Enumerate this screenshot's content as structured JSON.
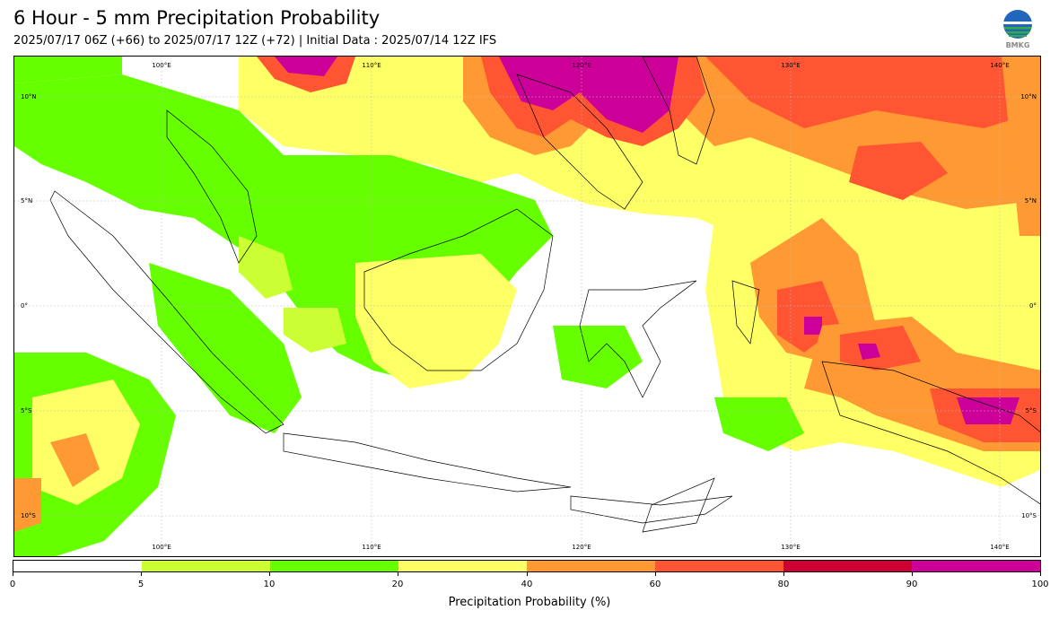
{
  "header": {
    "title": "6 Hour - 5 mm Precipitation Probability",
    "subtitle": "2025/07/17 06Z (+66) to 2025/07/17 12Z (+72) | Initial Data : 2025/07/14 12Z IFS"
  },
  "logo": {
    "icon": "bmkg-logo-icon",
    "text": "BMKG"
  },
  "map": {
    "extent": {
      "lon": [
        93,
        142
      ],
      "lat": [
        -12,
        12
      ]
    },
    "longitude_labels": [
      "100°E",
      "110°E",
      "120°E",
      "130°E",
      "140°E"
    ],
    "latitude_labels": [
      "10°N",
      "5°N",
      "0°",
      "5°S",
      "10°S"
    ]
  },
  "colorbar": {
    "ticks": [
      "0",
      "5",
      "10",
      "20",
      "40",
      "60",
      "80",
      "90",
      "100"
    ],
    "colors": [
      "#ffffff",
      "#ccff33",
      "#66ff00",
      "#ffff66",
      "#ff9933",
      "#ff5533",
      "#cc0033",
      "#cc0099"
    ],
    "label": "Precipitation Probability (%)"
  }
}
